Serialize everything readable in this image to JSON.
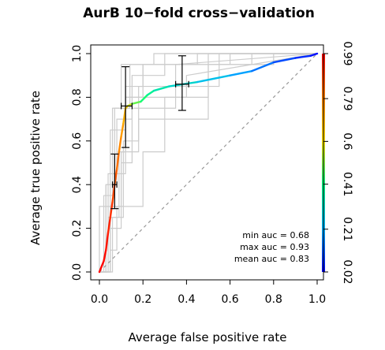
{
  "chart_data": {
    "type": "line",
    "title": "AurB 10−fold cross−validation",
    "xlabel": "Average false positive rate",
    "ylabel": "Average true positive rate",
    "xlim": [
      0,
      1
    ],
    "ylim": [
      0,
      1
    ],
    "x_ticks": [
      0.0,
      0.2,
      0.4,
      0.6,
      0.8,
      1.0
    ],
    "x_tick_labels": [
      "0.0",
      "0.2",
      "0.4",
      "0.6",
      "0.8",
      "1.0"
    ],
    "y_ticks": [
      0.0,
      0.2,
      0.4,
      0.6,
      0.8,
      1.0
    ],
    "y_tick_labels": [
      "0.0",
      "0.2",
      "0.4",
      "0.6",
      "0.8",
      "1.0"
    ],
    "grid": false,
    "legend_position": "bottom-right",
    "annotations": [
      "min auc = 0.68",
      "max auc = 0.93",
      "mean auc = 0.83"
    ],
    "colorbar": {
      "position": "right",
      "tick_values": [
        0.02,
        0.21,
        0.41,
        0.6,
        0.79,
        0.99
      ],
      "tick_labels": [
        "0.02",
        "0.21",
        "0.41",
        "0.6",
        "0.79",
        "0.99"
      ],
      "colors": [
        "#0000ff",
        "#00b4ff",
        "#00ff80",
        "#ffe000",
        "#ff8000",
        "#ff0000"
      ]
    },
    "diagonal_reference": {
      "x": [
        0,
        1
      ],
      "y": [
        0,
        1
      ],
      "color": "#999999",
      "dashed": true
    },
    "average_curve": [
      {
        "x": 0.0,
        "y": 0.0,
        "cutoff": 0.99
      },
      {
        "x": 0.02,
        "y": 0.05,
        "cutoff": 0.98
      },
      {
        "x": 0.03,
        "y": 0.1,
        "cutoff": 0.97
      },
      {
        "x": 0.04,
        "y": 0.18,
        "cutoff": 0.95
      },
      {
        "x": 0.05,
        "y": 0.25,
        "cutoff": 0.93
      },
      {
        "x": 0.06,
        "y": 0.32,
        "cutoff": 0.9
      },
      {
        "x": 0.07,
        "y": 0.4,
        "cutoff": 0.87
      },
      {
        "x": 0.08,
        "y": 0.47,
        "cutoff": 0.84
      },
      {
        "x": 0.09,
        "y": 0.55,
        "cutoff": 0.8
      },
      {
        "x": 0.1,
        "y": 0.62,
        "cutoff": 0.76
      },
      {
        "x": 0.11,
        "y": 0.68,
        "cutoff": 0.72
      },
      {
        "x": 0.12,
        "y": 0.75,
        "cutoff": 0.68
      },
      {
        "x": 0.13,
        "y": 0.76,
        "cutoff": 0.6
      },
      {
        "x": 0.15,
        "y": 0.77,
        "cutoff": 0.52
      },
      {
        "x": 0.19,
        "y": 0.78,
        "cutoff": 0.45
      },
      {
        "x": 0.22,
        "y": 0.81,
        "cutoff": 0.4
      },
      {
        "x": 0.25,
        "y": 0.83,
        "cutoff": 0.36
      },
      {
        "x": 0.32,
        "y": 0.85,
        "cutoff": 0.32
      },
      {
        "x": 0.45,
        "y": 0.87,
        "cutoff": 0.27
      },
      {
        "x": 0.6,
        "y": 0.9,
        "cutoff": 0.22
      },
      {
        "x": 0.7,
        "y": 0.92,
        "cutoff": 0.17
      },
      {
        "x": 0.8,
        "y": 0.96,
        "cutoff": 0.12
      },
      {
        "x": 0.9,
        "y": 0.98,
        "cutoff": 0.08
      },
      {
        "x": 0.97,
        "y": 0.99,
        "cutoff": 0.05
      },
      {
        "x": 1.0,
        "y": 1.0,
        "cutoff": 0.02
      }
    ],
    "error_bars": [
      {
        "x": 0.07,
        "y": 0.4,
        "y_low": 0.29,
        "y_high": 0.54,
        "x_low": 0.06,
        "x_high": 0.08
      },
      {
        "x": 0.12,
        "y": 0.76,
        "y_low": 0.57,
        "y_high": 0.94,
        "x_low": 0.1,
        "x_high": 0.15
      },
      {
        "x": 0.38,
        "y": 0.86,
        "y_low": 0.74,
        "y_high": 0.99,
        "x_low": 0.35,
        "x_high": 0.41
      }
    ],
    "fold_curves": [
      {
        "x": [
          0,
          0,
          0.05,
          0.05,
          0.12,
          0.12,
          0.2,
          0.2,
          0.45,
          0.45,
          1.0
        ],
        "y": [
          0,
          0.3,
          0.3,
          0.65,
          0.65,
          0.85,
          0.85,
          0.95,
          0.95,
          1.0,
          1.0
        ]
      },
      {
        "x": [
          0,
          0.03,
          0.03,
          0.08,
          0.08,
          0.15,
          0.15,
          0.3,
          0.3,
          1.0
        ],
        "y": [
          0,
          0,
          0.4,
          0.4,
          0.7,
          0.7,
          0.9,
          0.9,
          1.0,
          1.0
        ]
      },
      {
        "x": [
          0,
          0.05,
          0.05,
          0.1,
          0.1,
          0.12,
          0.12,
          0.4,
          0.4,
          1.0
        ],
        "y": [
          0,
          0,
          0.3,
          0.3,
          0.55,
          0.55,
          0.8,
          0.8,
          0.9,
          1.0
        ]
      },
      {
        "x": [
          0,
          0.04,
          0.04,
          0.09,
          0.09,
          0.18,
          0.18,
          0.5,
          0.5,
          0.6,
          0.6,
          1.0
        ],
        "y": [
          0,
          0,
          0.25,
          0.25,
          0.55,
          0.55,
          0.7,
          0.7,
          0.95,
          0.95,
          1.0,
          1.0
        ]
      },
      {
        "x": [
          0,
          0.02,
          0.02,
          0.06,
          0.06,
          0.1,
          0.1,
          0.25,
          0.25,
          1.0
        ],
        "y": [
          0,
          0,
          0.35,
          0.35,
          0.75,
          0.75,
          0.95,
          0.95,
          1.0,
          1.0
        ]
      },
      {
        "x": [
          0,
          0.05,
          0.05,
          0.08,
          0.08,
          0.2,
          0.2,
          0.3,
          0.3,
          0.5,
          0.5,
          1.0
        ],
        "y": [
          0,
          0,
          0.1,
          0.1,
          0.3,
          0.3,
          0.55,
          0.55,
          0.8,
          0.8,
          1.0,
          1.0
        ]
      },
      {
        "x": [
          0,
          0.03,
          0.03,
          0.07,
          0.07,
          0.14,
          0.14,
          0.7,
          0.7,
          1.0
        ],
        "y": [
          0,
          0,
          0.4,
          0.4,
          0.75,
          0.75,
          0.95,
          0.95,
          1.0,
          1.0
        ]
      },
      {
        "x": [
          0,
          0.06,
          0.06,
          0.11,
          0.11,
          0.18,
          0.18,
          0.55,
          0.55,
          1.0
        ],
        "y": [
          0,
          0,
          0.25,
          0.25,
          0.6,
          0.6,
          0.85,
          0.85,
          1.0,
          1.0
        ]
      },
      {
        "x": [
          0,
          0.04,
          0.04,
          0.12,
          0.12,
          0.2,
          0.2,
          0.8,
          0.8,
          1.0
        ],
        "y": [
          0,
          0,
          0.45,
          0.45,
          0.8,
          0.8,
          0.95,
          0.95,
          1.0,
          1.0
        ]
      },
      {
        "x": [
          0,
          0.05,
          0.05,
          0.1,
          0.1,
          0.15,
          0.15,
          0.35,
          0.35,
          1.0
        ],
        "y": [
          0,
          0,
          0.2,
          0.2,
          0.5,
          0.5,
          0.75,
          0.75,
          0.95,
          1.0
        ]
      }
    ]
  }
}
